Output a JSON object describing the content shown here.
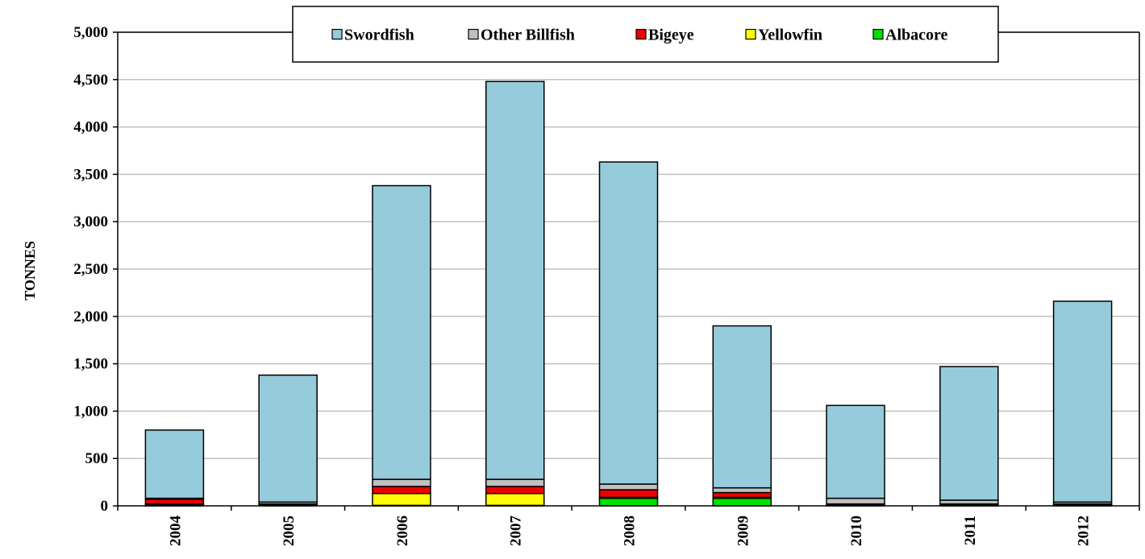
{
  "chart_data": {
    "type": "bar",
    "stacked": true,
    "title": "",
    "xlabel": "",
    "ylabel": "TONNES",
    "ylim": [
      0,
      5000
    ],
    "yticks": [
      0,
      500,
      1000,
      1500,
      2000,
      2500,
      3000,
      3500,
      4000,
      4500,
      5000
    ],
    "ytick_labels": [
      "0",
      "500",
      "1,000",
      "1,500",
      "2,000",
      "2,500",
      "3,000",
      "3,500",
      "4,000",
      "4,500",
      "5,000"
    ],
    "grid": true,
    "legend_position": "top-center",
    "categories": [
      "2004",
      "2005",
      "2006",
      "2007",
      "2008",
      "2009",
      "2010",
      "2011",
      "2012"
    ],
    "series": [
      {
        "name": "Albacore",
        "color": "#00e000",
        "values": [
          10,
          5,
          5,
          5,
          80,
          80,
          5,
          5,
          5
        ]
      },
      {
        "name": "Yellowfin",
        "color": "#ffff00",
        "values": [
          10,
          5,
          125,
          125,
          10,
          10,
          5,
          5,
          5
        ]
      },
      {
        "name": "Bigeye",
        "color": "#ee0000",
        "values": [
          50,
          10,
          75,
          75,
          80,
          50,
          10,
          10,
          10
        ]
      },
      {
        "name": "Other Billfish",
        "color": "#c0c0c0",
        "values": [
          10,
          20,
          75,
          75,
          60,
          50,
          60,
          40,
          20
        ]
      },
      {
        "name": "Swordfish",
        "color": "#96cbdb",
        "values": [
          720,
          1340,
          3100,
          4200,
          3400,
          1710,
          980,
          1410,
          2120
        ]
      }
    ],
    "legend_order": [
      "Swordfish",
      "Other Billfish",
      "Bigeye",
      "Yellowfin",
      "Albacore"
    ]
  }
}
